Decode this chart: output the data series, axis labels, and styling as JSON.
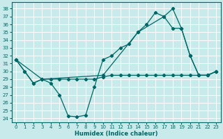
{
  "xlabel": "Humidex (Indice chaleur)",
  "bg_color": "#c9eaea",
  "grid_color": "#ffffff",
  "line_color": "#006666",
  "xlim": [
    -0.5,
    23.5
  ],
  "ylim": [
    23.5,
    38.8
  ],
  "xticks": [
    0,
    1,
    2,
    3,
    4,
    5,
    6,
    7,
    8,
    9,
    10,
    11,
    12,
    13,
    14,
    15,
    16,
    17,
    18,
    19,
    20,
    21,
    22,
    23
  ],
  "yticks": [
    24,
    25,
    26,
    27,
    28,
    29,
    30,
    31,
    32,
    33,
    34,
    35,
    36,
    37,
    38
  ],
  "line1_x": [
    0,
    1,
    2,
    3,
    4,
    5,
    6,
    7,
    8,
    9,
    10,
    11,
    12,
    13,
    14,
    15,
    16,
    17,
    18,
    19,
    20,
    21,
    22,
    23
  ],
  "line1_y": [
    31.5,
    30.0,
    28.5,
    29.0,
    28.5,
    27.0,
    24.3,
    24.2,
    24.4,
    28.0,
    31.5,
    32.0,
    33.0,
    33.5,
    35.0,
    36.0,
    37.5,
    37.0,
    38.0,
    35.5,
    32.0,
    29.5,
    29.5,
    30.0
  ],
  "line2_x": [
    0,
    1,
    2,
    3,
    4,
    5,
    6,
    7,
    8,
    9,
    10,
    11,
    12,
    13,
    14,
    15,
    16,
    17,
    18,
    19,
    20,
    21,
    22,
    23
  ],
  "line2_y": [
    31.5,
    30.0,
    28.5,
    29.0,
    29.0,
    29.0,
    29.0,
    29.0,
    29.0,
    29.0,
    29.3,
    29.5,
    29.5,
    29.5,
    29.5,
    29.5,
    29.5,
    29.5,
    29.5,
    29.5,
    29.5,
    29.5,
    29.5,
    30.0
  ],
  "line3_x": [
    0,
    3,
    10,
    14,
    17,
    18,
    19,
    20,
    21,
    22,
    23
  ],
  "line3_y": [
    31.5,
    29.0,
    29.5,
    35.0,
    37.0,
    35.5,
    35.5,
    32.0,
    29.5,
    29.5,
    30.0
  ]
}
